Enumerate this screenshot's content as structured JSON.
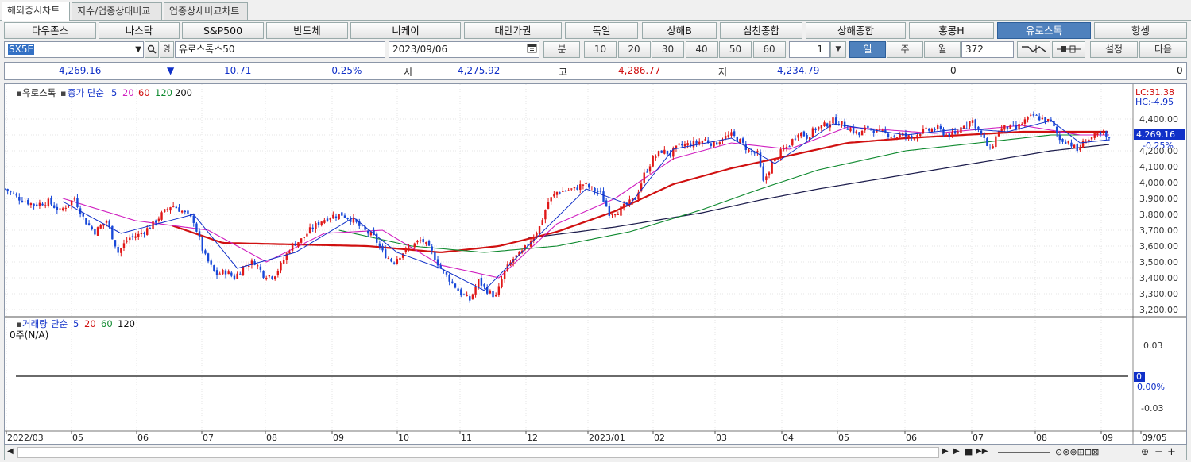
{
  "tabs": [
    {
      "label": "해외증시차트",
      "active": true
    },
    {
      "label": "지수/업종상대비교",
      "active": false
    },
    {
      "label": "업종상세비교차트",
      "active": false
    }
  ],
  "markets": [
    {
      "label": "다우존스"
    },
    {
      "label": "나스닥"
    },
    {
      "label": "S&P500"
    },
    {
      "label": "반도체"
    },
    {
      "label": "니케이"
    },
    {
      "label": "대만가권"
    },
    {
      "label": "독일"
    },
    {
      "label": "상해B"
    },
    {
      "label": "심천종합"
    },
    {
      "label": "상해종합"
    },
    {
      "label": "홍콩H"
    },
    {
      "label": "유로스톡"
    },
    {
      "label": "항셍"
    }
  ],
  "toolbar": {
    "symbol": "SX5E",
    "period_icon": "영",
    "index_name": "유로스톡스50",
    "date": "2023/09/06",
    "minute_label": "분",
    "intervals": [
      "10",
      "20",
      "30",
      "40",
      "50",
      "60"
    ],
    "count": "1",
    "day_label": "일",
    "week_label": "주",
    "month_label": "월",
    "bars": "372",
    "settings_label": "설정",
    "next_label": "다음"
  },
  "quote": {
    "price": "4,269.16",
    "arrow": "▼",
    "change": "10.71",
    "change_pct": "-0.25%",
    "open_label": "시",
    "open": "4,275.92",
    "high_label": "고",
    "high": "4,286.77",
    "low_label": "저",
    "low": "4,234.79",
    "vol1": "0",
    "vol2": "0"
  },
  "price_panel": {
    "title": "유로스톡",
    "ma_label": "종가 단순",
    "ma_periods": [
      "5",
      "20",
      "60",
      "120",
      "200"
    ],
    "lc": "LC:31.38",
    "hc": "HC:-4.95",
    "last_price": "4,269.16",
    "last_pct": "-0.25%"
  },
  "volume_panel": {
    "title": "거래량",
    "ma_label": "단순",
    "ma_periods": [
      "5",
      "20",
      "60",
      "120"
    ],
    "value_text": "0주(N/A)",
    "axis": [
      "0.03",
      "0",
      "-0.03"
    ],
    "last": "0",
    "last_pct": "0.00%"
  },
  "x_labels": [
    "2022/03",
    "05",
    "06",
    "07",
    "08",
    "09",
    "10",
    "11",
    "12",
    "2023/01",
    "02",
    "03",
    "04",
    "05",
    "06",
    "07",
    "08",
    "09",
    "09/05"
  ],
  "chart_data": {
    "type": "candlestick",
    "y_ticks": [
      "4,400.00",
      "4,300.00",
      "4,200.00",
      "4,100.00",
      "4,000.00",
      "3,900.00",
      "3,800.00",
      "3,700.00",
      "3,600.00",
      "3,500.00",
      "3,400.00",
      "3,300.00",
      "3,200.00"
    ],
    "ylim": [
      3180,
      4480
    ],
    "price_path": [
      [
        0,
        3960
      ],
      [
        10,
        3900
      ],
      [
        20,
        3860
      ],
      [
        30,
        3880
      ],
      [
        38,
        3820
      ],
      [
        48,
        3900
      ],
      [
        55,
        3760
      ],
      [
        62,
        3690
      ],
      [
        70,
        3760
      ],
      [
        78,
        3560
      ],
      [
        85,
        3650
      ],
      [
        92,
        3670
      ],
      [
        100,
        3720
      ],
      [
        108,
        3800
      ],
      [
        115,
        3860
      ],
      [
        122,
        3820
      ],
      [
        130,
        3760
      ],
      [
        137,
        3550
      ],
      [
        145,
        3420
      ],
      [
        152,
        3440
      ],
      [
        158,
        3400
      ],
      [
        165,
        3480
      ],
      [
        172,
        3500
      ],
      [
        178,
        3420
      ],
      [
        185,
        3410
      ],
      [
        190,
        3480
      ],
      [
        197,
        3600
      ],
      [
        204,
        3640
      ],
      [
        210,
        3700
      ],
      [
        218,
        3760
      ],
      [
        225,
        3790
      ],
      [
        232,
        3800
      ],
      [
        240,
        3760
      ],
      [
        247,
        3700
      ],
      [
        254,
        3660
      ],
      [
        260,
        3560
      ],
      [
        267,
        3500
      ],
      [
        274,
        3560
      ],
      [
        280,
        3600
      ],
      [
        287,
        3640
      ],
      [
        294,
        3560
      ],
      [
        300,
        3460
      ],
      [
        307,
        3380
      ],
      [
        314,
        3300
      ],
      [
        320,
        3260
      ],
      [
        326,
        3380
      ],
      [
        332,
        3320
      ],
      [
        338,
        3280
      ],
      [
        344,
        3440
      ],
      [
        350,
        3520
      ],
      [
        356,
        3560
      ],
      [
        362,
        3640
      ],
      [
        368,
        3720
      ],
      [
        374,
        3880
      ],
      [
        380,
        3940
      ],
      [
        386,
        3950
      ],
      [
        392,
        3960
      ],
      [
        398,
        3990
      ],
      [
        404,
        3960
      ],
      [
        410,
        3930
      ],
      [
        416,
        3810
      ],
      [
        422,
        3820
      ],
      [
        428,
        3860
      ],
      [
        434,
        3900
      ],
      [
        440,
        4050
      ],
      [
        446,
        4150
      ],
      [
        452,
        4200
      ],
      [
        458,
        4180
      ],
      [
        464,
        4230
      ],
      [
        470,
        4240
      ],
      [
        476,
        4250
      ],
      [
        482,
        4270
      ],
      [
        488,
        4240
      ],
      [
        494,
        4280
      ],
      [
        500,
        4300
      ],
      [
        506,
        4260
      ],
      [
        512,
        4200
      ],
      [
        518,
        4180
      ],
      [
        522,
        4000
      ],
      [
        528,
        4120
      ],
      [
        534,
        4190
      ],
      [
        540,
        4240
      ],
      [
        546,
        4320
      ],
      [
        552,
        4290
      ],
      [
        558,
        4340
      ],
      [
        564,
        4360
      ],
      [
        570,
        4390
      ],
      [
        576,
        4370
      ],
      [
        582,
        4340
      ],
      [
        588,
        4300
      ],
      [
        594,
        4350
      ],
      [
        600,
        4320
      ],
      [
        606,
        4310
      ],
      [
        612,
        4290
      ],
      [
        618,
        4300
      ],
      [
        624,
        4280
      ],
      [
        630,
        4320
      ],
      [
        636,
        4330
      ],
      [
        642,
        4340
      ],
      [
        648,
        4300
      ],
      [
        654,
        4300
      ],
      [
        660,
        4370
      ],
      [
        666,
        4390
      ],
      [
        672,
        4300
      ],
      [
        678,
        4200
      ],
      [
        684,
        4330
      ],
      [
        690,
        4350
      ],
      [
        696,
        4340
      ],
      [
        702,
        4390
      ],
      [
        708,
        4420
      ],
      [
        714,
        4400
      ],
      [
        720,
        4380
      ],
      [
        726,
        4270
      ],
      [
        732,
        4260
      ],
      [
        738,
        4200
      ],
      [
        744,
        4270
      ],
      [
        750,
        4290
      ],
      [
        756,
        4300
      ],
      [
        760,
        4269
      ]
    ],
    "ma5_path": [
      [
        40,
        3880
      ],
      [
        80,
        3680
      ],
      [
        130,
        3800
      ],
      [
        160,
        3460
      ],
      [
        200,
        3560
      ],
      [
        240,
        3780
      ],
      [
        270,
        3560
      ],
      [
        300,
        3460
      ],
      [
        330,
        3320
      ],
      [
        360,
        3600
      ],
      [
        400,
        3960
      ],
      [
        430,
        3860
      ],
      [
        460,
        4210
      ],
      [
        500,
        4280
      ],
      [
        530,
        4120
      ],
      [
        570,
        4370
      ],
      [
        620,
        4300
      ],
      [
        660,
        4340
      ],
      [
        690,
        4320
      ],
      [
        720,
        4390
      ],
      [
        740,
        4250
      ],
      [
        760,
        4270
      ]
    ],
    "ma20_path": [
      [
        40,
        3900
      ],
      [
        90,
        3760
      ],
      [
        140,
        3700
      ],
      [
        180,
        3500
      ],
      [
        220,
        3680
      ],
      [
        260,
        3700
      ],
      [
        300,
        3480
      ],
      [
        340,
        3400
      ],
      [
        380,
        3740
      ],
      [
        420,
        3900
      ],
      [
        460,
        4150
      ],
      [
        500,
        4250
      ],
      [
        540,
        4210
      ],
      [
        580,
        4350
      ],
      [
        640,
        4310
      ],
      [
        700,
        4360
      ],
      [
        740,
        4300
      ],
      [
        760,
        4300
      ]
    ],
    "ma60_path": [
      [
        230,
        3700
      ],
      [
        280,
        3600
      ],
      [
        330,
        3560
      ],
      [
        380,
        3600
      ],
      [
        430,
        3690
      ],
      [
        480,
        3830
      ],
      [
        520,
        3960
      ],
      [
        560,
        4080
      ],
      [
        620,
        4200
      ],
      [
        680,
        4260
      ],
      [
        720,
        4300
      ],
      [
        760,
        4300
      ]
    ],
    "ma120_path": [
      [
        115,
        3730
      ],
      [
        150,
        3620
      ],
      [
        200,
        3610
      ],
      [
        250,
        3600
      ],
      [
        300,
        3560
      ],
      [
        340,
        3600
      ],
      [
        380,
        3690
      ],
      [
        420,
        3820
      ],
      [
        460,
        3990
      ],
      [
        500,
        4090
      ],
      [
        540,
        4170
      ],
      [
        580,
        4250
      ],
      [
        620,
        4280
      ],
      [
        660,
        4300
      ],
      [
        700,
        4320
      ],
      [
        740,
        4320
      ],
      [
        760,
        4320
      ]
    ],
    "ma200_path": [
      [
        360,
        3650
      ],
      [
        420,
        3720
      ],
      [
        480,
        3810
      ],
      [
        520,
        3890
      ],
      [
        560,
        3960
      ],
      [
        600,
        4020
      ],
      [
        640,
        4080
      ],
      [
        680,
        4140
      ],
      [
        720,
        4200
      ],
      [
        760,
        4240
      ]
    ]
  }
}
